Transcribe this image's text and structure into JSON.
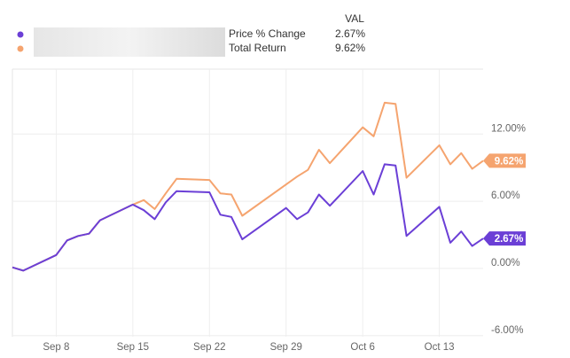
{
  "chart_data": {
    "type": "line",
    "legend_header": "VAL",
    "x": [
      "Sep 4",
      "Sep 5",
      "Sep 8",
      "Sep 9",
      "Sep 10",
      "Sep 11",
      "Sep 12",
      "Sep 15",
      "Sep 16",
      "Sep 17",
      "Sep 18",
      "Sep 19",
      "Sep 22",
      "Sep 23",
      "Sep 24",
      "Sep 25",
      "Sep 29",
      "Sep 30",
      "Oct 1",
      "Oct 2",
      "Oct 3",
      "Oct 6",
      "Oct 7",
      "Oct 8",
      "Oct 9",
      "Oct 10",
      "Oct 13",
      "Oct 14",
      "Oct 15",
      "Oct 16",
      "Oct 17"
    ],
    "series": [
      {
        "name": "Price % Change",
        "color": "#6b3fd6",
        "legend_value": "2.67%",
        "values": [
          0.1,
          -0.2,
          1.2,
          2.5,
          2.9,
          3.1,
          4.3,
          5.7,
          5.2,
          4.4,
          5.9,
          6.9,
          6.8,
          4.8,
          4.6,
          2.6,
          5.4,
          4.4,
          5.0,
          6.6,
          5.6,
          8.7,
          6.6,
          9.3,
          9.2,
          2.9,
          5.5,
          2.3,
          3.3,
          2.0,
          2.67
        ]
      },
      {
        "name": "Total Return",
        "color": "#f5a46f",
        "legend_value": "9.62%",
        "values": [
          0.1,
          -0.2,
          1.2,
          2.5,
          2.9,
          3.1,
          4.3,
          5.7,
          6.1,
          5.3,
          6.7,
          8.0,
          7.9,
          6.7,
          6.6,
          4.7,
          7.5,
          8.2,
          8.8,
          10.6,
          9.4,
          12.6,
          11.8,
          14.8,
          14.7,
          8.1,
          11.0,
          9.3,
          10.3,
          8.9,
          9.62
        ]
      }
    ],
    "xlim": [
      "Sep 4",
      "Oct 17"
    ],
    "xticks": [
      "Sep 8",
      "Sep 15",
      "Sep 22",
      "Sep 29",
      "Oct 6",
      "Oct 13"
    ],
    "ylim": [
      -6.1,
      17.8
    ],
    "yticks": [
      {
        "value": -6,
        "label": "-6.00%"
      },
      {
        "value": 0,
        "label": "0.00%"
      },
      {
        "value": 6,
        "label": "6.00%"
      },
      {
        "value": 12,
        "label": "12.00%"
      }
    ],
    "grid": true
  }
}
